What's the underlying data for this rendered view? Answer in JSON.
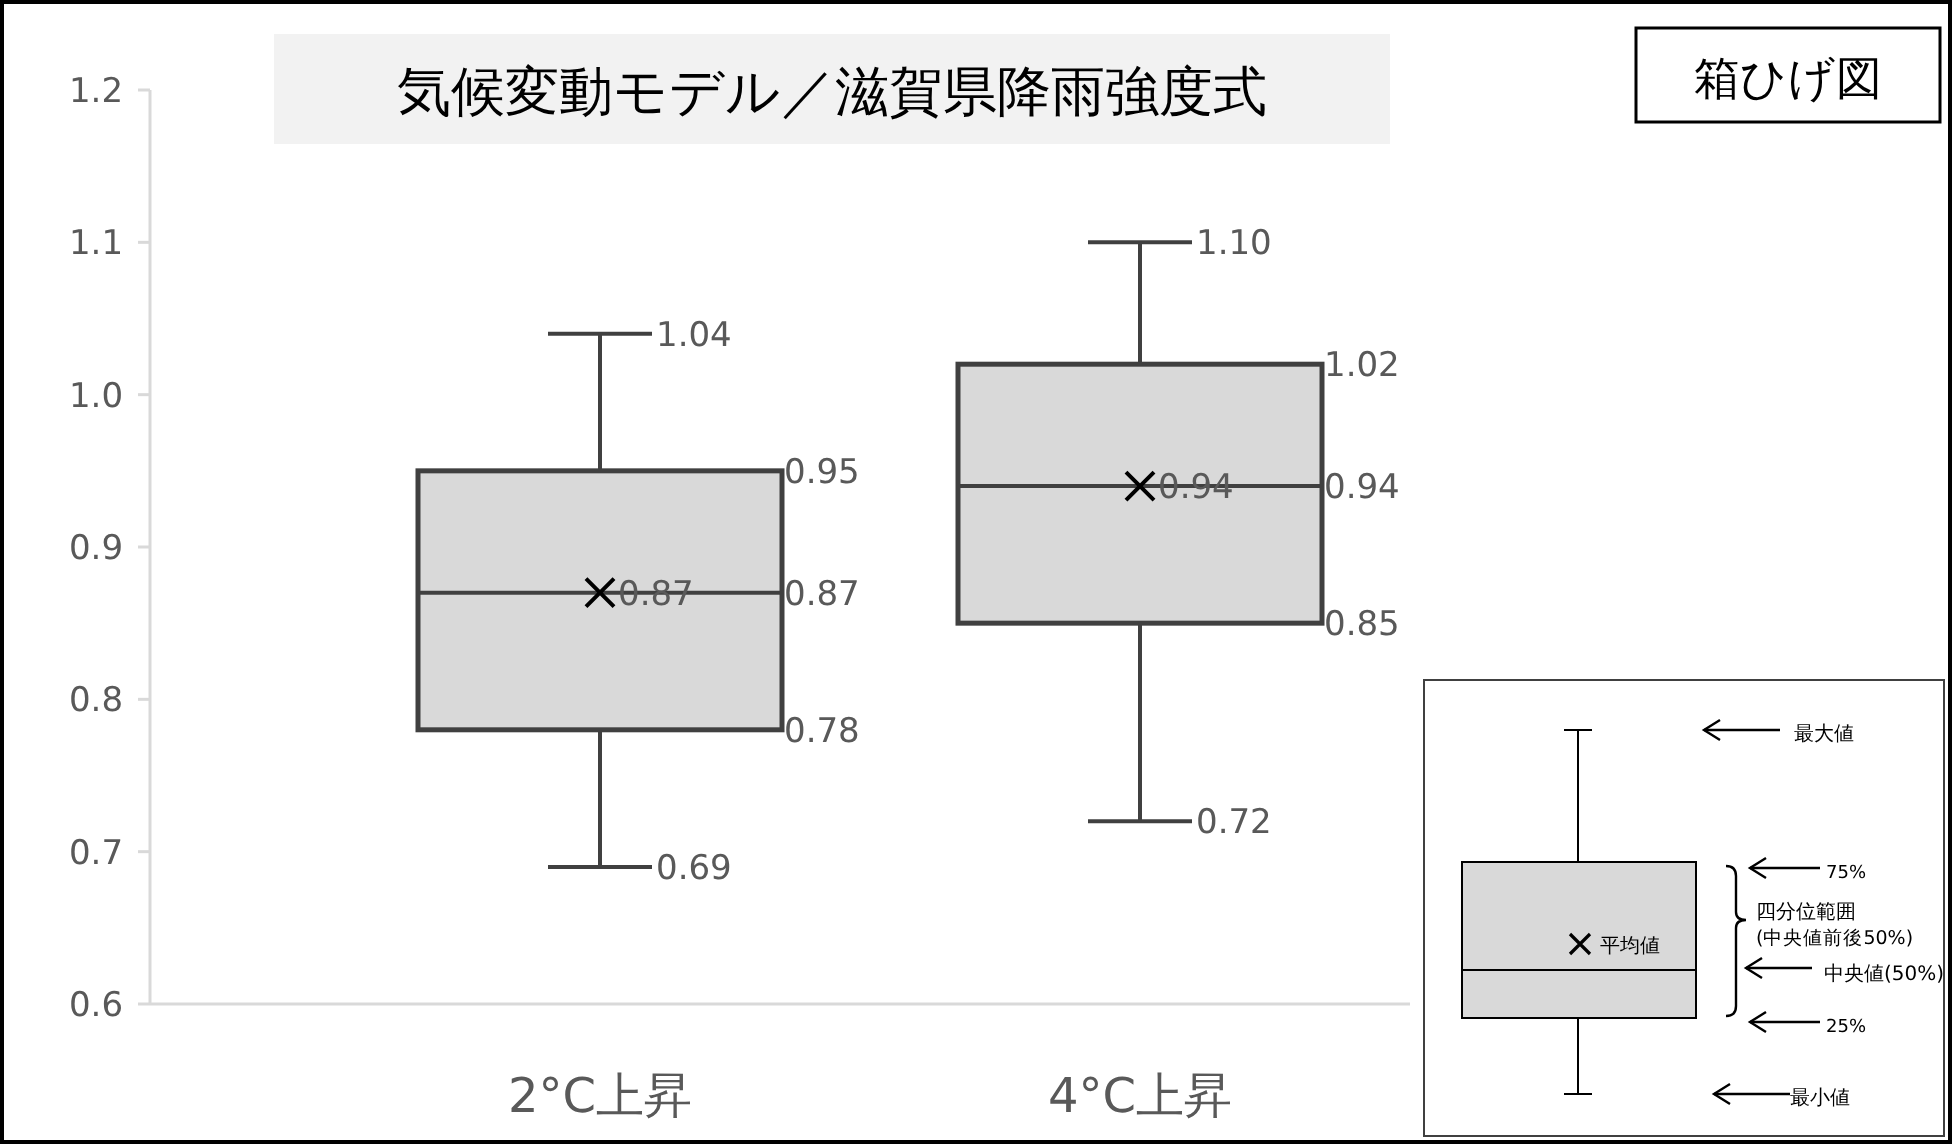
{
  "chart_data": {
    "type": "box",
    "title": "気候変動モデル／滋賀県降雨強度式",
    "subtitle": "箱ひげ図",
    "categories": [
      "2°C上昇",
      "4°C上昇"
    ],
    "series": [
      {
        "color": "#d9d9d9",
        "boxes": [
          {
            "low": 0.69,
            "q1": 0.78,
            "median": 0.87,
            "q3": 0.95,
            "high": 1.04,
            "mean": 0.87
          },
          {
            "low": 0.72,
            "q1": 0.85,
            "median": 0.94,
            "q3": 1.02,
            "high": 1.1,
            "mean": 0.94
          }
        ]
      }
    ],
    "ylim": [
      0.6,
      1.2
    ],
    "yticks": [
      0.6,
      0.7,
      0.8,
      0.9,
      {
        "value": 1,
        "label": "1.0"
      },
      1.1,
      1.2
    ],
    "marker": "cross",
    "annotations": [
      {
        "text": "1.04",
        "x": "2°C上昇",
        "y": 1.04
      },
      "0.95",
      "0.87",
      "0.78",
      {
        "text": "0.69",
        "x": "2°C上昇",
        "y": 0.69
      },
      {
        "text": "0.87",
        "x": "2°C上昇",
        "y": 0.87
      },
      {
        "text": "1.10",
        "x": "4°C上昇",
        "y": 1.1
      },
      "1.02",
      "0.94",
      "0.85",
      {
        "text": "0.72",
        "x": "4°C上昇",
        "y": 0.72
      },
      {
        "text": "0.94",
        "x": "4°C上昇",
        "y": 0.94
      },
      "最大値",
      "75%",
      "四分位範囲",
      "(中央値前後50%)",
      "平均値",
      "中央値(50%)",
      "25%",
      "最小値"
    ]
  }
}
